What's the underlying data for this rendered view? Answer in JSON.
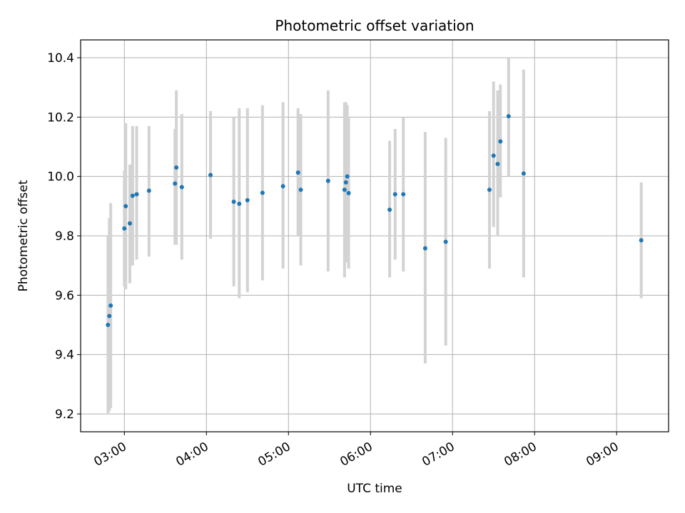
{
  "chart_data": {
    "type": "scatter",
    "title": "Photometric offset variation",
    "xlabel": "UTC time",
    "ylabel": "Photometric offset",
    "x_axis_type": "time",
    "xlim": [
      "02:28",
      "09:38"
    ],
    "ylim": [
      9.14,
      10.46
    ],
    "x_ticks": [
      "03:00",
      "04:00",
      "05:00",
      "06:00",
      "07:00",
      "08:00",
      "09:00"
    ],
    "y_ticks": [
      "9.2",
      "9.4",
      "9.6",
      "9.8",
      "10.0",
      "10.2",
      "10.4"
    ],
    "grid": true,
    "marker_color": "#1f77b4",
    "errorbar_color": "#d3d3d3",
    "points": [
      {
        "x": "02:48",
        "y": 9.5,
        "yerr_low": 9.2,
        "yerr_high": 9.8
      },
      {
        "x": "02:49",
        "y": 9.53,
        "yerr_low": 9.21,
        "yerr_high": 9.86
      },
      {
        "x": "02:50",
        "y": 9.565,
        "yerr_low": 9.22,
        "yerr_high": 9.91
      },
      {
        "x": "03:00",
        "y": 9.825,
        "yerr_low": 9.63,
        "yerr_high": 10.02
      },
      {
        "x": "03:01",
        "y": 9.9,
        "yerr_low": 9.62,
        "yerr_high": 10.18
      },
      {
        "x": "03:04",
        "y": 9.842,
        "yerr_low": 9.64,
        "yerr_high": 10.04
      },
      {
        "x": "03:06",
        "y": 9.935,
        "yerr_low": 9.7,
        "yerr_high": 10.17
      },
      {
        "x": "03:09",
        "y": 9.94,
        "yerr_low": 9.72,
        "yerr_high": 10.17
      },
      {
        "x": "03:18",
        "y": 9.952,
        "yerr_low": 9.73,
        "yerr_high": 10.17
      },
      {
        "x": "03:37",
        "y": 9.976,
        "yerr_low": 9.77,
        "yerr_high": 10.16
      },
      {
        "x": "03:38",
        "y": 10.03,
        "yerr_low": 9.77,
        "yerr_high": 10.29
      },
      {
        "x": "03:42",
        "y": 9.964,
        "yerr_low": 9.72,
        "yerr_high": 10.21
      },
      {
        "x": "04:03",
        "y": 10.005,
        "yerr_low": 9.79,
        "yerr_high": 10.22
      },
      {
        "x": "04:20",
        "y": 9.915,
        "yerr_low": 9.63,
        "yerr_high": 10.2
      },
      {
        "x": "04:24",
        "y": 9.908,
        "yerr_low": 9.59,
        "yerr_high": 10.23
      },
      {
        "x": "04:30",
        "y": 9.92,
        "yerr_low": 9.61,
        "yerr_high": 10.23
      },
      {
        "x": "04:41",
        "y": 9.945,
        "yerr_low": 9.65,
        "yerr_high": 10.24
      },
      {
        "x": "04:56",
        "y": 9.967,
        "yerr_low": 9.69,
        "yerr_high": 10.25
      },
      {
        "x": "05:07",
        "y": 10.013,
        "yerr_low": 9.8,
        "yerr_high": 10.23
      },
      {
        "x": "05:09",
        "y": 9.955,
        "yerr_low": 9.7,
        "yerr_high": 10.21
      },
      {
        "x": "05:29",
        "y": 9.985,
        "yerr_low": 9.68,
        "yerr_high": 10.29
      },
      {
        "x": "05:41",
        "y": 9.955,
        "yerr_low": 9.66,
        "yerr_high": 10.25
      },
      {
        "x": "05:42",
        "y": 9.98,
        "yerr_low": 9.71,
        "yerr_high": 10.25
      },
      {
        "x": "05:43",
        "y": 10.0,
        "yerr_low": 9.76,
        "yerr_high": 10.24
      },
      {
        "x": "05:44",
        "y": 9.944,
        "yerr_low": 9.69,
        "yerr_high": 10.2
      },
      {
        "x": "06:14",
        "y": 9.888,
        "yerr_low": 9.66,
        "yerr_high": 10.12
      },
      {
        "x": "06:18",
        "y": 9.94,
        "yerr_low": 9.72,
        "yerr_high": 10.16
      },
      {
        "x": "06:24",
        "y": 9.94,
        "yerr_low": 9.68,
        "yerr_high": 10.2
      },
      {
        "x": "06:40",
        "y": 9.758,
        "yerr_low": 9.37,
        "yerr_high": 10.15
      },
      {
        "x": "06:55",
        "y": 9.78,
        "yerr_low": 9.43,
        "yerr_high": 10.13
      },
      {
        "x": "07:27",
        "y": 9.955,
        "yerr_low": 9.69,
        "yerr_high": 10.22
      },
      {
        "x": "07:30",
        "y": 10.07,
        "yerr_low": 9.83,
        "yerr_high": 10.32
      },
      {
        "x": "07:33",
        "y": 10.042,
        "yerr_low": 9.8,
        "yerr_high": 10.29
      },
      {
        "x": "07:35",
        "y": 10.118,
        "yerr_low": 9.93,
        "yerr_high": 10.31
      },
      {
        "x": "07:41",
        "y": 10.203,
        "yerr_low": 10.0,
        "yerr_high": 10.4
      },
      {
        "x": "07:52",
        "y": 10.01,
        "yerr_low": 9.66,
        "yerr_high": 10.36
      },
      {
        "x": "09:18",
        "y": 9.785,
        "yerr_low": 9.59,
        "yerr_high": 9.98
      }
    ]
  }
}
